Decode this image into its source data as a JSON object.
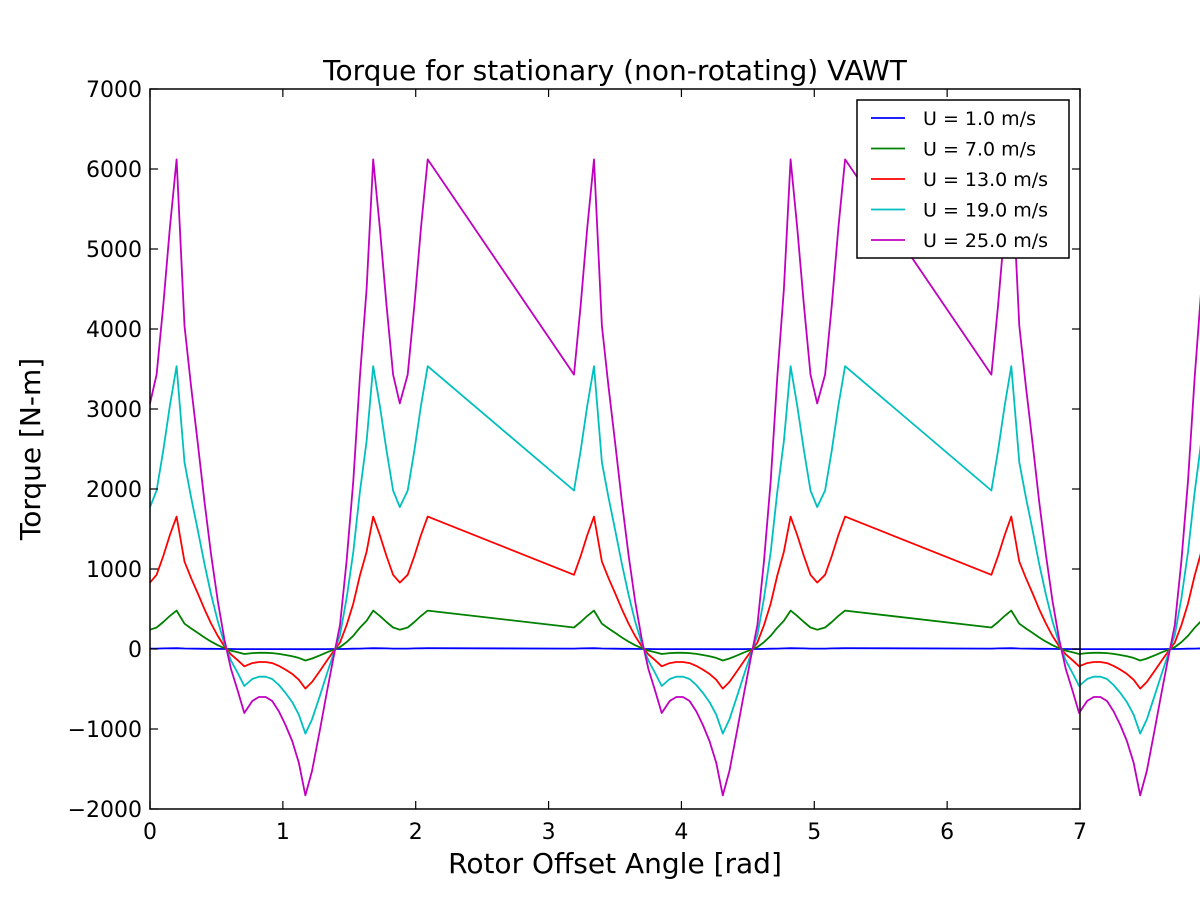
{
  "chart_data": {
    "type": "line",
    "title": "Torque for stationary (non-rotating) VAWT",
    "xlabel": "Rotor Offset Angle [rad]",
    "ylabel": "Torque [N-m]",
    "xlim": [
      0,
      7
    ],
    "ylim": [
      -2000,
      7000
    ],
    "xticks": [
      0,
      1,
      2,
      3,
      4,
      5,
      6,
      7
    ],
    "yticks": [
      -2000,
      -1000,
      0,
      1000,
      2000,
      3000,
      4000,
      5000,
      6000,
      7000
    ],
    "xtick_labels": [
      "0",
      "1",
      "2",
      "3",
      "4",
      "5",
      "6",
      "7"
    ],
    "ytick_labels": [
      "−2000",
      "−1000",
      "0",
      "1000",
      "2000",
      "3000",
      "4000",
      "5000",
      "6000",
      "7000"
    ],
    "grid": false,
    "legend_position": "top-right",
    "base_profile": {
      "x": [
        0,
        0.05,
        0.1,
        0.15,
        0.2,
        0.26,
        0.31,
        0.36,
        0.41,
        0.46,
        0.51,
        0.56,
        0.61,
        0.66,
        0.71,
        0.77,
        0.82,
        0.87,
        0.92,
        0.97,
        1.02,
        1.07,
        1.12,
        1.17,
        1.22,
        1.28,
        1.33,
        1.38,
        1.43,
        1.48,
        1.53,
        1.58,
        1.63,
        1.68,
        1.73,
        1.78,
        1.83,
        1.88,
        1.94,
        1.99,
        2.04,
        2.09
      ],
      "y": [
        3070,
        3430,
        4300,
        5270,
        6120,
        4040,
        3270,
        2570,
        1840,
        1180,
        600,
        120,
        -250,
        -520,
        -800,
        -650,
        -600,
        -600,
        -650,
        -780,
        -950,
        -1150,
        -1420,
        -1830,
        -1520,
        -1000,
        -550,
        -120,
        300,
        1100,
        2100,
        3400,
        4500,
        6120,
        5270,
        4300,
        3430,
        3070,
        3430,
        4300,
        5270,
        6120
      ]
    },
    "series": [
      {
        "name": "U = 1.0 m/s",
        "color": "#0000ff",
        "scale": 0.0016
      },
      {
        "name": "U = 7.0 m/s",
        "color": "#008000",
        "scale": 0.0784
      },
      {
        "name": "U = 13.0 m/s",
        "color": "#ff0000",
        "scale": 0.2704
      },
      {
        "name": "U = 19.0 m/s",
        "color": "#00bfbf",
        "scale": 0.5776
      },
      {
        "name": "U = 25.0 m/s",
        "color": "#bf00bf",
        "scale": 1.0
      }
    ]
  }
}
